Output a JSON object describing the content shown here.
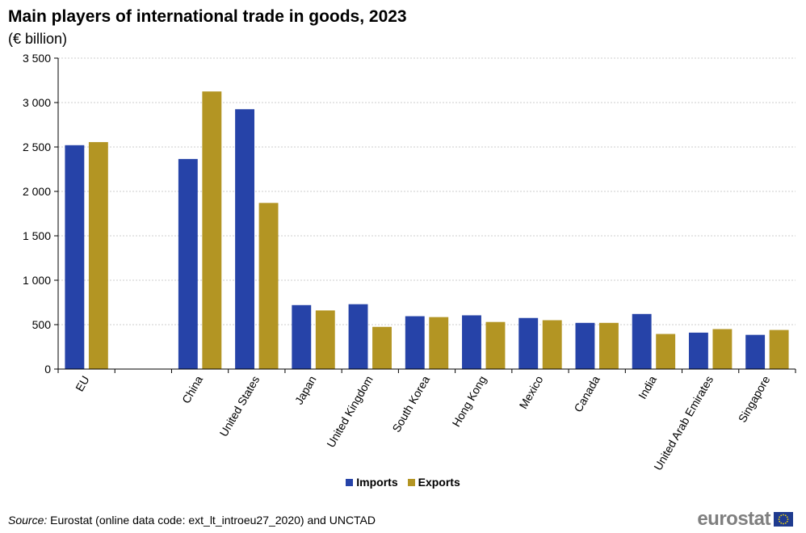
{
  "header": {
    "title": "Main players of international trade in goods, 2023",
    "subtitle": "(€ billion)"
  },
  "footer": {
    "source_label": "Source:",
    "source_text": " Eurostat (online data code: ext_lt_introeu27_2020) and UNCTAD",
    "logo_text": "eurostat",
    "flag_icon": "eu-flag-icon"
  },
  "colors": {
    "imports": "#2643a8",
    "exports": "#b39523",
    "grid": "#bdbdbd",
    "axis": "#000000"
  },
  "chart_data": {
    "type": "bar",
    "categories": [
      "EU",
      "",
      "China",
      "United States",
      "Japan",
      "United Kingdom",
      "South Korea",
      "Hong Kong",
      "Mexico",
      "Canada",
      "India",
      "United Arab Emirates",
      "Singapore"
    ],
    "series": [
      {
        "name": "Imports",
        "values": [
          2520,
          null,
          2365,
          2925,
          720,
          730,
          595,
          605,
          575,
          520,
          620,
          410,
          385
        ]
      },
      {
        "name": "Exports",
        "values": [
          2555,
          null,
          3125,
          1870,
          660,
          475,
          585,
          530,
          550,
          520,
          395,
          450,
          440
        ]
      }
    ],
    "title": "Main players of international trade in goods, 2023",
    "subtitle": "(€ billion)",
    "xlabel": "",
    "ylabel": "",
    "ylim": [
      0,
      3500
    ],
    "yticks": [
      0,
      500,
      1000,
      1500,
      2000,
      2500,
      3000,
      3500
    ],
    "ytick_labels": [
      "0",
      "500",
      "1 000",
      "1 500",
      "2 000",
      "2 500",
      "3 000",
      "3 500"
    ],
    "grid": true,
    "legend": "bottom"
  }
}
